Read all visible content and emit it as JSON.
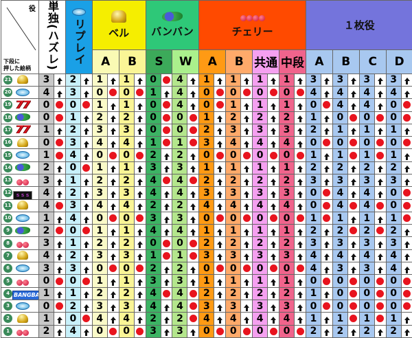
{
  "header": {
    "corner_top": "役",
    "corner_bottom_1": "下段に",
    "corner_bottom_2": "押した絵柄",
    "tandoku": "単独(ハズレ)",
    "replay": "リプレイ",
    "bell": "ベル",
    "banban": "バンバン",
    "cherry": "チェリー",
    "one_coin": "１枚役",
    "bell_sub": [
      "A",
      "B"
    ],
    "banban_sub": [
      "S",
      "W"
    ],
    "cherry_sub": [
      "A",
      "B",
      "共通",
      "中段"
    ],
    "one_coin_sub": [
      "A",
      "B",
      "C",
      "D"
    ]
  },
  "colors": {
    "tandoku": "#c8c8c8",
    "replay_header": "#1aa0e6",
    "replay": "#c8f0fa",
    "bell_header": "#f5ee00",
    "bell_a": "#fafac8",
    "bell_b": "#faf596",
    "banban_header": "#2ec878",
    "banban_s": "#3cb464",
    "banban_w": "#b4e68c",
    "cherry_header": "#ff4a00",
    "cherry_a": "#ff9a14",
    "cherry_b": "#ffaa6a",
    "cherry_common": "#f5a0f0",
    "cherry_middle": "#f0648c",
    "one_coin_header": "#7474dc",
    "one_coin": "#a8c8f0",
    "up_arrow": "#111111",
    "dot": "#e8141e"
  },
  "legend": {
    "up": "up-arrow-icon",
    "dot": "red-dot-icon"
  },
  "rows": [
    {
      "no": "21",
      "symbol": "bell",
      "cells": [
        [
          3,
          "up"
        ],
        [
          2,
          "up"
        ],
        [
          1,
          "up"
        ],
        [
          1,
          "up"
        ],
        [
          0,
          "dot"
        ],
        [
          4,
          "up"
        ],
        [
          1,
          "up"
        ],
        [
          1,
          "up"
        ],
        [
          1,
          "up"
        ],
        [
          1,
          "up"
        ],
        [
          3,
          "up"
        ],
        [
          3,
          "up"
        ],
        [
          3,
          "up"
        ],
        [
          3,
          "up"
        ]
      ]
    },
    {
      "no": "20",
      "symbol": "replay",
      "cells": [
        [
          4,
          "up"
        ],
        [
          3,
          "up"
        ],
        [
          0,
          "dot"
        ],
        [
          0,
          "dot"
        ],
        [
          1,
          "up"
        ],
        [
          4,
          "up"
        ],
        [
          0,
          "dot"
        ],
        [
          0,
          "dot"
        ],
        [
          0,
          "dot"
        ],
        [
          0,
          "dot"
        ],
        [
          4,
          "up"
        ],
        [
          4,
          "up"
        ],
        [
          4,
          "up"
        ],
        [
          4,
          "up"
        ]
      ]
    },
    {
      "no": "19",
      "symbol": "seven",
      "cells": [
        [
          0,
          "dot"
        ],
        [
          0,
          "dot"
        ],
        [
          1,
          "up"
        ],
        [
          1,
          "up"
        ],
        [
          0,
          "dot"
        ],
        [
          4,
          "up"
        ],
        [
          0,
          "dot"
        ],
        [
          1,
          "up"
        ],
        [
          1,
          "up"
        ],
        [
          1,
          "up"
        ],
        [
          0,
          "dot"
        ],
        [
          4,
          "up"
        ],
        [
          4,
          "up"
        ],
        [
          0,
          "dot"
        ]
      ]
    },
    {
      "no": "18",
      "symbol": "banban",
      "cells": [
        [
          0,
          "dot"
        ],
        [
          1,
          "up"
        ],
        [
          2,
          "up"
        ],
        [
          2,
          "up"
        ],
        [
          0,
          "dot"
        ],
        [
          0,
          "dot"
        ],
        [
          1,
          "up"
        ],
        [
          2,
          "up"
        ],
        [
          2,
          "up"
        ],
        [
          2,
          "up"
        ],
        [
          1,
          "up"
        ],
        [
          0,
          "dot"
        ],
        [
          0,
          "dot"
        ],
        [
          0,
          "dot"
        ]
      ]
    },
    {
      "no": "17",
      "symbol": "seven",
      "cells": [
        [
          1,
          "up"
        ],
        [
          2,
          "up"
        ],
        [
          3,
          "up"
        ],
        [
          3,
          "up"
        ],
        [
          0,
          "dot"
        ],
        [
          0,
          "dot"
        ],
        [
          2,
          "up"
        ],
        [
          3,
          "up"
        ],
        [
          3,
          "up"
        ],
        [
          3,
          "up"
        ],
        [
          2,
          "up"
        ],
        [
          1,
          "up"
        ],
        [
          1,
          "up"
        ],
        [
          1,
          "up"
        ]
      ]
    },
    {
      "no": "16",
      "symbol": "bell",
      "cells": [
        [
          0,
          "dot"
        ],
        [
          3,
          "up"
        ],
        [
          4,
          "up"
        ],
        [
          4,
          "up"
        ],
        [
          1,
          "dot"
        ],
        [
          1,
          "dot"
        ],
        [
          3,
          "up"
        ],
        [
          4,
          "up"
        ],
        [
          4,
          "up"
        ],
        [
          4,
          "up"
        ],
        [
          0,
          "dot"
        ],
        [
          0,
          "dot"
        ],
        [
          0,
          "dot"
        ],
        [
          0,
          "dot"
        ]
      ]
    },
    {
      "no": "15",
      "symbol": "replay",
      "cells": [
        [
          1,
          "dot"
        ],
        [
          4,
          "up"
        ],
        [
          0,
          "dot"
        ],
        [
          0,
          "dot"
        ],
        [
          2,
          "up"
        ],
        [
          2,
          "up"
        ],
        [
          0,
          "dot"
        ],
        [
          0,
          "dot"
        ],
        [
          0,
          "dot"
        ],
        [
          0,
          "dot"
        ],
        [
          1,
          "up"
        ],
        [
          1,
          "dot"
        ],
        [
          1,
          "dot"
        ],
        [
          1,
          "up"
        ]
      ]
    },
    {
      "no": "14",
      "symbol": "banban",
      "cells": [
        [
          2,
          "up"
        ],
        [
          0,
          "dot"
        ],
        [
          1,
          "up"
        ],
        [
          1,
          "up"
        ],
        [
          3,
          "up"
        ],
        [
          3,
          "up"
        ],
        [
          1,
          "up"
        ],
        [
          1,
          "up"
        ],
        [
          1,
          "up"
        ],
        [
          1,
          "up"
        ],
        [
          2,
          "up"
        ],
        [
          2,
          "up"
        ],
        [
          2,
          "up"
        ],
        [
          2,
          "up"
        ]
      ]
    },
    {
      "no": "13",
      "symbol": "cherry",
      "cells": [
        [
          3,
          "up"
        ],
        [
          1,
          "up"
        ],
        [
          2,
          "up"
        ],
        [
          2,
          "up"
        ],
        [
          4,
          "dot"
        ],
        [
          4,
          "dot"
        ],
        [
          2,
          "up"
        ],
        [
          2,
          "up"
        ],
        [
          2,
          "up"
        ],
        [
          2,
          "up"
        ],
        [
          3,
          "up"
        ],
        [
          3,
          "up"
        ],
        [
          3,
          "up"
        ],
        [
          3,
          "up"
        ]
      ]
    },
    {
      "no": "12",
      "symbol": "bar",
      "cells": [
        [
          4,
          "up"
        ],
        [
          2,
          "up"
        ],
        [
          3,
          "up"
        ],
        [
          3,
          "up"
        ],
        [
          4,
          "up"
        ],
        [
          4,
          "up"
        ],
        [
          3,
          "up"
        ],
        [
          3,
          "up"
        ],
        [
          3,
          "up"
        ],
        [
          3,
          "up"
        ],
        [
          0,
          "dot"
        ],
        [
          4,
          "up"
        ],
        [
          4,
          "up"
        ],
        [
          0,
          "dot"
        ]
      ]
    },
    {
      "no": "11",
      "symbol": "bell",
      "cells": [
        [
          4,
          "dot"
        ],
        [
          3,
          "up"
        ],
        [
          4,
          "up"
        ],
        [
          4,
          "up"
        ],
        [
          2,
          "up"
        ],
        [
          2,
          "up"
        ],
        [
          4,
          "up"
        ],
        [
          4,
          "up"
        ],
        [
          4,
          "up"
        ],
        [
          4,
          "up"
        ],
        [
          0,
          "dot"
        ],
        [
          4,
          "dot"
        ],
        [
          4,
          "dot"
        ],
        [
          0,
          "dot"
        ]
      ]
    },
    {
      "no": "10",
      "symbol": "replay",
      "cells": [
        [
          1,
          "up"
        ],
        [
          4,
          "up"
        ],
        [
          0,
          "dot"
        ],
        [
          0,
          "dot"
        ],
        [
          3,
          "up"
        ],
        [
          3,
          "up"
        ],
        [
          0,
          "dot"
        ],
        [
          0,
          "dot"
        ],
        [
          0,
          "dot"
        ],
        [
          0,
          "dot"
        ],
        [
          1,
          "dot"
        ],
        [
          1,
          "up"
        ],
        [
          1,
          "up"
        ],
        [
          1,
          "dot"
        ]
      ]
    },
    {
      "no": "9",
      "symbol": "banban",
      "cells": [
        [
          2,
          "dot"
        ],
        [
          0,
          "dot"
        ],
        [
          1,
          "up"
        ],
        [
          1,
          "up"
        ],
        [
          4,
          "up"
        ],
        [
          4,
          "up"
        ],
        [
          1,
          "up"
        ],
        [
          1,
          "up"
        ],
        [
          1,
          "up"
        ],
        [
          1,
          "up"
        ],
        [
          2,
          "up"
        ],
        [
          2,
          "dot"
        ],
        [
          2,
          "dot"
        ],
        [
          2,
          "up"
        ]
      ]
    },
    {
      "no": "8",
      "symbol": "cherry",
      "cells": [
        [
          3,
          "up"
        ],
        [
          1,
          "up"
        ],
        [
          2,
          "up"
        ],
        [
          2,
          "up"
        ],
        [
          0,
          "dot"
        ],
        [
          0,
          "dot"
        ],
        [
          2,
          "up"
        ],
        [
          2,
          "up"
        ],
        [
          2,
          "up"
        ],
        [
          2,
          "up"
        ],
        [
          3,
          "up"
        ],
        [
          3,
          "up"
        ],
        [
          3,
          "up"
        ],
        [
          3,
          "up"
        ]
      ]
    },
    {
      "no": "7",
      "symbol": "bell",
      "cells": [
        [
          4,
          "up"
        ],
        [
          2,
          "up"
        ],
        [
          3,
          "up"
        ],
        [
          3,
          "up"
        ],
        [
          1,
          "dot"
        ],
        [
          1,
          "dot"
        ],
        [
          3,
          "up"
        ],
        [
          3,
          "up"
        ],
        [
          3,
          "up"
        ],
        [
          3,
          "up"
        ],
        [
          4,
          "up"
        ],
        [
          4,
          "up"
        ],
        [
          4,
          "up"
        ],
        [
          4,
          "up"
        ]
      ]
    },
    {
      "no": "6",
      "symbol": "replay",
      "cells": [
        [
          3,
          "up"
        ],
        [
          3,
          "up"
        ],
        [
          0,
          "dot"
        ],
        [
          0,
          "dot"
        ],
        [
          2,
          "up"
        ],
        [
          2,
          "up"
        ],
        [
          0,
          "dot"
        ],
        [
          0,
          "dot"
        ],
        [
          0,
          "dot"
        ],
        [
          0,
          "dot"
        ],
        [
          4,
          "up"
        ],
        [
          3,
          "up"
        ],
        [
          3,
          "up"
        ],
        [
          4,
          "up"
        ]
      ]
    },
    {
      "no": "5",
      "symbol": "cherry",
      "cells": [
        [
          0,
          "dot"
        ],
        [
          0,
          "dot"
        ],
        [
          1,
          "up"
        ],
        [
          1,
          "up"
        ],
        [
          3,
          "up"
        ],
        [
          3,
          "up"
        ],
        [
          1,
          "up"
        ],
        [
          1,
          "up"
        ],
        [
          1,
          "up"
        ],
        [
          1,
          "up"
        ],
        [
          0,
          "dot"
        ],
        [
          0,
          "dot"
        ],
        [
          0,
          "dot"
        ],
        [
          0,
          "dot"
        ]
      ]
    },
    {
      "no": "4",
      "symbol": "bangbang",
      "logo_text": "BANGBANG",
      "cells": [
        [
          1,
          "up"
        ],
        [
          1,
          "up"
        ],
        [
          2,
          "up"
        ],
        [
          2,
          "up"
        ],
        [
          4,
          "dot"
        ],
        [
          4,
          "dot"
        ],
        [
          2,
          "up"
        ],
        [
          2,
          "up"
        ],
        [
          2,
          "up"
        ],
        [
          2,
          "up"
        ],
        [
          1,
          "up"
        ],
        [
          0,
          "dot"
        ],
        [
          0,
          "dot"
        ],
        [
          0,
          "dot"
        ]
      ]
    },
    {
      "no": "3",
      "symbol": "replay",
      "cells": [
        [
          0,
          "dot"
        ],
        [
          2,
          "up"
        ],
        [
          3,
          "up"
        ],
        [
          3,
          "up"
        ],
        [
          4,
          "up"
        ],
        [
          4,
          "dot"
        ],
        [
          3,
          "up"
        ],
        [
          3,
          "up"
        ],
        [
          3,
          "up"
        ],
        [
          3,
          "up"
        ],
        [
          0,
          "dot"
        ],
        [
          0,
          "dot"
        ],
        [
          0,
          "dot"
        ],
        [
          0,
          "dot"
        ]
      ]
    },
    {
      "no": "2",
      "symbol": "bell",
      "cells": [
        [
          1,
          "up"
        ],
        [
          0,
          "dot"
        ],
        [
          4,
          "up"
        ],
        [
          4,
          "up"
        ],
        [
          2,
          "up"
        ],
        [
          2,
          "dot"
        ],
        [
          4,
          "up"
        ],
        [
          4,
          "up"
        ],
        [
          4,
          "up"
        ],
        [
          4,
          "up"
        ],
        [
          1,
          "up"
        ],
        [
          1,
          "dot"
        ],
        [
          1,
          "dot"
        ],
        [
          1,
          "up"
        ]
      ]
    },
    {
      "no": "1",
      "symbol": "cherry",
      "cells": [
        [
          2,
          "up"
        ],
        [
          4,
          "up"
        ],
        [
          0,
          "dot"
        ],
        [
          0,
          "dot"
        ],
        [
          3,
          "up"
        ],
        [
          3,
          "up"
        ],
        [
          0,
          "dot"
        ],
        [
          0,
          "dot"
        ],
        [
          0,
          "dot"
        ],
        [
          0,
          "dot"
        ],
        [
          2,
          "up"
        ],
        [
          2,
          "up"
        ],
        [
          2,
          "up"
        ],
        [
          2,
          "up"
        ]
      ]
    }
  ]
}
